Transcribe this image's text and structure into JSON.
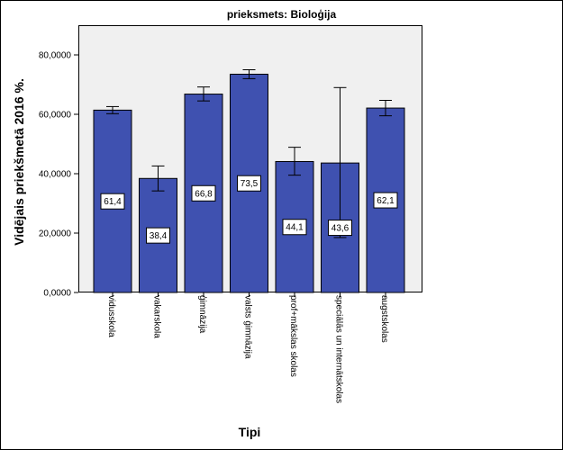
{
  "chart_data": {
    "type": "bar",
    "title": "prieksmets: Bioloģija",
    "xlabel": "Tipi",
    "ylabel": "Vidējais priekšmetā 2016 %.",
    "ylim": [
      0,
      90
    ],
    "yticks": [
      0,
      20,
      40,
      60,
      80
    ],
    "ytick_labels": [
      "0,0000",
      "20,0000",
      "40,0000",
      "60,0000",
      "80,0000"
    ],
    "categories": [
      "vidusskola",
      "vakarskola",
      "ģimnāzija",
      "valsts ģimnāzija",
      "prof+mākslas skolas",
      "speciālās un internātskolas",
      "augstskolas"
    ],
    "values": [
      61.4,
      38.4,
      66.8,
      73.5,
      44.1,
      43.6,
      62.1
    ],
    "value_labels": [
      "61,4",
      "38,4",
      "66,8",
      "73,5",
      "44,1",
      "43,6",
      "62,1"
    ],
    "error_low": [
      60.2,
      34.2,
      64.5,
      72.0,
      39.5,
      18.5,
      59.5
    ],
    "error_high": [
      62.6,
      42.6,
      69.2,
      75.0,
      48.9,
      69.0,
      64.7
    ],
    "bar_color": "#3f51b0",
    "plot_background": "#f0f0f0",
    "grid": false,
    "legend": "none"
  }
}
